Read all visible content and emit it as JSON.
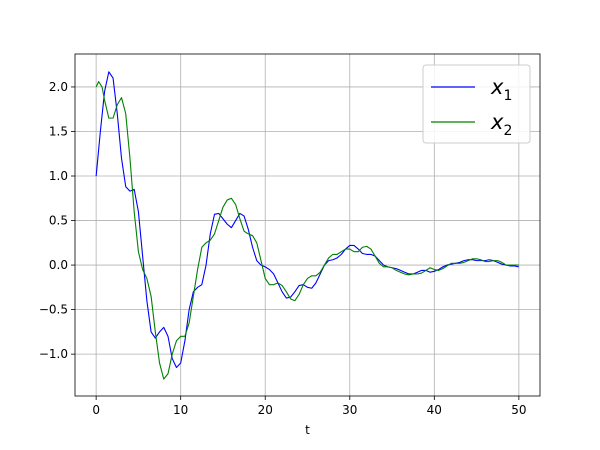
{
  "chart_data": {
    "type": "line",
    "title": "",
    "xlabel": "t",
    "ylabel": "",
    "xlim": [
      -2.5,
      52.5
    ],
    "ylim": [
      -1.47,
      2.37
    ],
    "xticks": [
      0,
      10,
      20,
      30,
      40,
      50
    ],
    "yticks": [
      -1.0,
      -0.5,
      0.0,
      0.5,
      1.0,
      1.5,
      2.0
    ],
    "xtick_labels": [
      "0",
      "10",
      "20",
      "30",
      "40",
      "50"
    ],
    "ytick_labels": [
      "−1.0",
      "−0.5",
      "0.0",
      "0.5",
      "1.0",
      "1.5",
      "2.0"
    ],
    "grid": true,
    "legend_position": "top-right",
    "series": [
      {
        "name": "x1",
        "legend_base": "x",
        "legend_sub": "1",
        "color": "#0000ff",
        "points": [
          [
            0,
            1.0
          ],
          [
            0.5,
            1.5
          ],
          [
            1.0,
            1.95
          ],
          [
            1.5,
            2.17
          ],
          [
            2.0,
            2.1
          ],
          [
            2.5,
            1.7
          ],
          [
            3.0,
            1.2
          ],
          [
            3.5,
            0.88
          ],
          [
            4.0,
            0.83
          ],
          [
            4.5,
            0.85
          ],
          [
            5.0,
            0.6
          ],
          [
            5.5,
            0.1
          ],
          [
            6.0,
            -0.4
          ],
          [
            6.5,
            -0.75
          ],
          [
            7.0,
            -0.82
          ],
          [
            7.5,
            -0.75
          ],
          [
            8.0,
            -0.7
          ],
          [
            8.5,
            -0.8
          ],
          [
            9.0,
            -1.05
          ],
          [
            9.5,
            -1.15
          ],
          [
            10.0,
            -1.1
          ],
          [
            10.5,
            -0.85
          ],
          [
            11.0,
            -0.5
          ],
          [
            11.5,
            -0.3
          ],
          [
            12.0,
            -0.25
          ],
          [
            12.5,
            -0.22
          ],
          [
            13.0,
            0.0
          ],
          [
            13.5,
            0.35
          ],
          [
            14.0,
            0.57
          ],
          [
            14.5,
            0.58
          ],
          [
            15.0,
            0.52
          ],
          [
            15.5,
            0.46
          ],
          [
            16.0,
            0.42
          ],
          [
            16.5,
            0.5
          ],
          [
            17.0,
            0.58
          ],
          [
            17.5,
            0.55
          ],
          [
            18.0,
            0.4
          ],
          [
            18.5,
            0.2
          ],
          [
            19.0,
            0.05
          ],
          [
            19.5,
            0.0
          ],
          [
            20.0,
            -0.02
          ],
          [
            20.5,
            -0.05
          ],
          [
            21.0,
            -0.1
          ],
          [
            21.5,
            -0.2
          ],
          [
            22.0,
            -0.3
          ],
          [
            22.5,
            -0.37
          ],
          [
            23.0,
            -0.36
          ],
          [
            23.5,
            -0.3
          ],
          [
            24.0,
            -0.23
          ],
          [
            24.5,
            -0.22
          ],
          [
            25.0,
            -0.25
          ],
          [
            25.5,
            -0.26
          ],
          [
            26.0,
            -0.2
          ],
          [
            26.5,
            -0.1
          ],
          [
            27.0,
            0.0
          ],
          [
            27.5,
            0.05
          ],
          [
            28.0,
            0.06
          ],
          [
            28.5,
            0.08
          ],
          [
            29.0,
            0.12
          ],
          [
            29.5,
            0.18
          ],
          [
            30.0,
            0.22
          ],
          [
            30.5,
            0.22
          ],
          [
            31.0,
            0.18
          ],
          [
            31.5,
            0.13
          ],
          [
            32.0,
            0.12
          ],
          [
            32.5,
            0.12
          ],
          [
            33.0,
            0.1
          ],
          [
            33.5,
            0.05
          ],
          [
            34.0,
            0.0
          ],
          [
            34.5,
            -0.02
          ],
          [
            35.0,
            -0.03
          ],
          [
            35.5,
            -0.04
          ],
          [
            36.0,
            -0.06
          ],
          [
            36.5,
            -0.08
          ],
          [
            37.0,
            -0.1
          ],
          [
            37.5,
            -0.1
          ],
          [
            38.0,
            -0.08
          ],
          [
            38.5,
            -0.06
          ],
          [
            39.0,
            -0.06
          ],
          [
            39.5,
            -0.08
          ],
          [
            40.0,
            -0.07
          ],
          [
            40.5,
            -0.05
          ],
          [
            41.0,
            -0.02
          ],
          [
            41.5,
            0.0
          ],
          [
            42.0,
            0.01
          ],
          [
            42.5,
            0.02
          ],
          [
            43.0,
            0.03
          ],
          [
            43.5,
            0.05
          ],
          [
            44.0,
            0.06
          ],
          [
            44.5,
            0.06
          ],
          [
            45.0,
            0.05
          ],
          [
            45.5,
            0.05
          ],
          [
            46.0,
            0.05
          ],
          [
            46.5,
            0.06
          ],
          [
            47.0,
            0.05
          ],
          [
            47.5,
            0.03
          ],
          [
            48.0,
            0.01
          ],
          [
            48.5,
            0.0
          ],
          [
            49.0,
            -0.01
          ],
          [
            49.5,
            -0.01
          ],
          [
            50.0,
            -0.02
          ]
        ]
      },
      {
        "name": "x2",
        "legend_base": "x",
        "legend_sub": "2",
        "color": "#008000",
        "points": [
          [
            0,
            2.0
          ],
          [
            0.3,
            2.06
          ],
          [
            0.7,
            2.0
          ],
          [
            1.0,
            1.85
          ],
          [
            1.5,
            1.65
          ],
          [
            2.0,
            1.65
          ],
          [
            2.5,
            1.8
          ],
          [
            3.0,
            1.88
          ],
          [
            3.5,
            1.7
          ],
          [
            4.0,
            1.2
          ],
          [
            4.5,
            0.6
          ],
          [
            5.0,
            0.15
          ],
          [
            5.5,
            -0.05
          ],
          [
            6.0,
            -0.15
          ],
          [
            6.5,
            -0.35
          ],
          [
            7.0,
            -0.75
          ],
          [
            7.5,
            -1.1
          ],
          [
            8.0,
            -1.28
          ],
          [
            8.5,
            -1.22
          ],
          [
            9.0,
            -1.0
          ],
          [
            9.5,
            -0.85
          ],
          [
            10.0,
            -0.8
          ],
          [
            10.5,
            -0.8
          ],
          [
            11.0,
            -0.65
          ],
          [
            11.5,
            -0.35
          ],
          [
            12.0,
            -0.05
          ],
          [
            12.5,
            0.2
          ],
          [
            13.0,
            0.25
          ],
          [
            13.5,
            0.28
          ],
          [
            14.0,
            0.35
          ],
          [
            14.5,
            0.5
          ],
          [
            15.0,
            0.65
          ],
          [
            15.5,
            0.73
          ],
          [
            16.0,
            0.75
          ],
          [
            16.5,
            0.68
          ],
          [
            17.0,
            0.52
          ],
          [
            17.5,
            0.38
          ],
          [
            18.0,
            0.35
          ],
          [
            18.5,
            0.33
          ],
          [
            19.0,
            0.25
          ],
          [
            19.5,
            0.05
          ],
          [
            20.0,
            -0.15
          ],
          [
            20.5,
            -0.22
          ],
          [
            21.0,
            -0.22
          ],
          [
            21.5,
            -0.2
          ],
          [
            22.0,
            -0.23
          ],
          [
            22.5,
            -0.3
          ],
          [
            23.0,
            -0.38
          ],
          [
            23.5,
            -0.4
          ],
          [
            24.0,
            -0.33
          ],
          [
            24.5,
            -0.22
          ],
          [
            25.0,
            -0.15
          ],
          [
            25.5,
            -0.12
          ],
          [
            26.0,
            -0.12
          ],
          [
            26.5,
            -0.08
          ],
          [
            27.0,
            0.0
          ],
          [
            27.5,
            0.08
          ],
          [
            28.0,
            0.12
          ],
          [
            28.5,
            0.12
          ],
          [
            29.0,
            0.15
          ],
          [
            29.5,
            0.18
          ],
          [
            30.0,
            0.18
          ],
          [
            30.5,
            0.15
          ],
          [
            31.0,
            0.15
          ],
          [
            31.5,
            0.2
          ],
          [
            32.0,
            0.21
          ],
          [
            32.5,
            0.18
          ],
          [
            33.0,
            0.1
          ],
          [
            33.5,
            0.02
          ],
          [
            34.0,
            -0.02
          ],
          [
            34.5,
            -0.02
          ],
          [
            35.0,
            -0.03
          ],
          [
            35.5,
            -0.06
          ],
          [
            36.0,
            -0.08
          ],
          [
            36.5,
            -0.1
          ],
          [
            37.0,
            -0.11
          ],
          [
            37.5,
            -0.1
          ],
          [
            38.0,
            -0.1
          ],
          [
            38.5,
            -0.09
          ],
          [
            39.0,
            -0.06
          ],
          [
            39.5,
            -0.03
          ],
          [
            40.0,
            -0.05
          ],
          [
            40.5,
            -0.06
          ],
          [
            41.0,
            -0.04
          ],
          [
            41.5,
            -0.01
          ],
          [
            42.0,
            0.02
          ],
          [
            42.5,
            0.02
          ],
          [
            43.0,
            0.02
          ],
          [
            43.5,
            0.03
          ],
          [
            44.0,
            0.05
          ],
          [
            44.5,
            0.07
          ],
          [
            45.0,
            0.07
          ],
          [
            45.5,
            0.06
          ],
          [
            46.0,
            0.04
          ],
          [
            46.5,
            0.04
          ],
          [
            47.0,
            0.05
          ],
          [
            47.5,
            0.05
          ],
          [
            48.0,
            0.03
          ],
          [
            48.5,
            0.0
          ],
          [
            49.0,
            0.0
          ],
          [
            49.5,
            0.0
          ],
          [
            50.0,
            0.0
          ]
        ]
      }
    ]
  }
}
